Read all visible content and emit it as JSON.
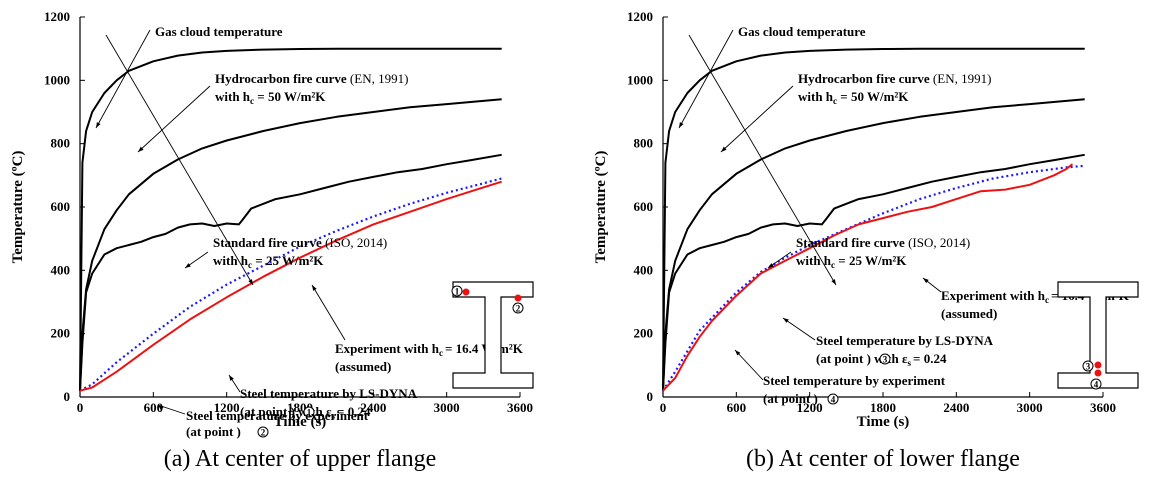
{
  "chart_data": [
    {
      "type": "line",
      "caption": "(a) At center of upper flange",
      "xlabel": "Time (s)",
      "ylabel": "Temperature (ºC)",
      "xlim": [
        0,
        3600
      ],
      "ylim": [
        0,
        1200
      ],
      "xticks": [
        0,
        600,
        1200,
        1800,
        2400,
        3000,
        3600
      ],
      "yticks": [
        0,
        200,
        400,
        600,
        800,
        1000,
        1200
      ],
      "grid": false,
      "series": [
        {
          "key": "gas",
          "color": "#000000",
          "style": "solid",
          "x": [
            0,
            20,
            50,
            100,
            200,
            300,
            400,
            600,
            800,
            1000,
            1200,
            1500,
            1800,
            2100,
            2400,
            2800,
            3200,
            3450
          ],
          "y": [
            20,
            740,
            840,
            900,
            960,
            1000,
            1030,
            1060,
            1078,
            1088,
            1093,
            1097,
            1099,
            1100,
            1100,
            1100,
            1100,
            1100
          ]
        },
        {
          "key": "hydrocarbon",
          "color": "#000000",
          "style": "solid",
          "x": [
            0,
            20,
            50,
            100,
            200,
            300,
            400,
            600,
            800,
            1000,
            1200,
            1500,
            1800,
            2100,
            2400,
            2700,
            3000,
            3300,
            3450
          ],
          "y": [
            20,
            200,
            340,
            430,
            530,
            590,
            640,
            705,
            750,
            785,
            810,
            840,
            865,
            885,
            900,
            915,
            925,
            935,
            940
          ]
        },
        {
          "key": "standard",
          "color": "#000000",
          "style": "solid",
          "x": [
            0,
            20,
            50,
            100,
            200,
            300,
            400,
            500,
            600,
            700,
            800,
            900,
            1000,
            1100,
            1200,
            1300,
            1330,
            1400,
            1500,
            1600,
            1800,
            2000,
            2200,
            2400,
            2600,
            2800,
            3000,
            3200,
            3450
          ],
          "y": [
            20,
            170,
            330,
            390,
            450,
            470,
            480,
            490,
            505,
            515,
            535,
            545,
            548,
            540,
            548,
            545,
            560,
            595,
            610,
            625,
            640,
            660,
            680,
            695,
            710,
            720,
            735,
            748,
            765
          ]
        },
        {
          "key": "lsdyna",
          "color": "#1a1aff",
          "style": "dotted",
          "x": [
            0,
            100,
            300,
            600,
            900,
            1200,
            1500,
            1800,
            2100,
            2400,
            2700,
            3000,
            3300,
            3450
          ],
          "y": [
            20,
            40,
            110,
            200,
            285,
            355,
            415,
            475,
            525,
            570,
            610,
            645,
            675,
            690
          ]
        },
        {
          "key": "experiment",
          "color": "#ee1111",
          "style": "solid",
          "x": [
            0,
            100,
            300,
            600,
            900,
            1200,
            1500,
            1800,
            2100,
            2400,
            2700,
            3000,
            3300,
            3450
          ],
          "y": [
            20,
            30,
            80,
            165,
            245,
            315,
            380,
            440,
            495,
            545,
            585,
            625,
            662,
            680
          ]
        }
      ],
      "labels": {
        "gas": "Gas cloud temperature",
        "hc_title": "Hydrocarbon fire curve",
        "hc_ref": "(EN, 1991)",
        "hc_with": "with h",
        "hc_sub": "c",
        "hc_val": " = 50 W/m²K",
        "std_title": "Standard fire curve",
        "std_ref": "(ISO, 2014)",
        "std_with": "with h",
        "std_sub": "c",
        "std_val": " = 25 W/m²K",
        "exp_l1a": "Experiment with h",
        "exp_sub": "c",
        "exp_l1b": "= 16.4 W/m²K",
        "exp_l2": "(assumed)",
        "ls_l1": "Steel temperature by LS-DYNA",
        "ls_l2a": "(at point ",
        "ls_pt": "1",
        "ls_l2b": ") with ε",
        "ls_sub": "s",
        "ls_l2c": "= 0.24",
        "se_l1": "Steel temperature by experiment",
        "se_l2a": "(at point ",
        "se_pt": "2",
        "se_l2b": ")"
      },
      "inset": {
        "p1": "1",
        "p2": "2"
      }
    },
    {
      "type": "line",
      "caption": "(b) At center of lower flange",
      "xlabel": "Time (s)",
      "ylabel": "Temperature (ºC)",
      "xlim": [
        0,
        3600
      ],
      "ylim": [
        0,
        1200
      ],
      "xticks": [
        0,
        600,
        1200,
        1800,
        2400,
        3000,
        3600
      ],
      "yticks": [
        0,
        200,
        400,
        600,
        800,
        1000,
        1200
      ],
      "grid": false,
      "series": [
        {
          "key": "gas",
          "color": "#000000",
          "style": "solid",
          "x": [
            0,
            20,
            50,
            100,
            200,
            300,
            400,
            600,
            800,
            1000,
            1200,
            1500,
            1800,
            2100,
            2400,
            2800,
            3200,
            3450
          ],
          "y": [
            20,
            740,
            840,
            900,
            960,
            1000,
            1030,
            1060,
            1078,
            1088,
            1093,
            1097,
            1099,
            1100,
            1100,
            1100,
            1100,
            1100
          ]
        },
        {
          "key": "hydrocarbon",
          "color": "#000000",
          "style": "solid",
          "x": [
            0,
            20,
            50,
            100,
            200,
            300,
            400,
            600,
            800,
            1000,
            1200,
            1500,
            1800,
            2100,
            2400,
            2700,
            3000,
            3300,
            3450
          ],
          "y": [
            20,
            200,
            340,
            430,
            530,
            590,
            640,
            705,
            750,
            785,
            810,
            840,
            865,
            885,
            900,
            915,
            925,
            935,
            940
          ]
        },
        {
          "key": "standard",
          "color": "#000000",
          "style": "solid",
          "x": [
            0,
            20,
            50,
            100,
            200,
            300,
            400,
            500,
            600,
            700,
            800,
            900,
            1000,
            1100,
            1200,
            1300,
            1330,
            1400,
            1500,
            1600,
            1800,
            2000,
            2200,
            2400,
            2600,
            2800,
            3000,
            3200,
            3450
          ],
          "y": [
            20,
            170,
            330,
            390,
            450,
            470,
            480,
            490,
            505,
            515,
            535,
            545,
            548,
            540,
            548,
            545,
            560,
            595,
            610,
            625,
            640,
            660,
            680,
            695,
            710,
            720,
            735,
            748,
            765
          ]
        },
        {
          "key": "lsdyna",
          "color": "#1a1aff",
          "style": "dotted",
          "x": [
            0,
            100,
            300,
            600,
            800,
            1000,
            1200,
            1500,
            1800,
            2100,
            2400,
            2700,
            3000,
            3300,
            3450
          ],
          "y": [
            20,
            80,
            210,
            330,
            395,
            440,
            480,
            530,
            580,
            625,
            660,
            690,
            710,
            725,
            730
          ]
        },
        {
          "key": "experiment",
          "color": "#ee1111",
          "style": "solid",
          "x": [
            0,
            100,
            200,
            300,
            400,
            500,
            600,
            700,
            800,
            1000,
            1200,
            1400,
            1600,
            1800,
            2000,
            2200,
            2400,
            2600,
            2800,
            3000,
            3200,
            3300,
            3350
          ],
          "y": [
            20,
            60,
            130,
            190,
            240,
            280,
            320,
            355,
            390,
            430,
            470,
            510,
            545,
            565,
            585,
            600,
            625,
            650,
            655,
            670,
            700,
            720,
            735
          ]
        }
      ],
      "labels": {
        "gas": "Gas cloud temperature",
        "hc_title": "Hydrocarbon fire curve",
        "hc_ref": "(EN, 1991)",
        "hc_with": "with h",
        "hc_sub": "c",
        "hc_val": " = 50 W/m²K",
        "std_title": "Standard fire curve",
        "std_ref": "(ISO, 2014)",
        "std_with": "with h",
        "std_sub": "c",
        "std_val": " = 25 W/m²K",
        "exp_l1a": "Experiment with h",
        "exp_sub": "c",
        "exp_l1b": "= 16.4 W/m²K",
        "exp_l2": "(assumed)",
        "ls_l1": "Steel temperature by LS-DYNA",
        "ls_l2a": "(at point ",
        "ls_pt": "3",
        "ls_l2b": ") with ε",
        "ls_sub": "s",
        "ls_l2c": "= 0.24",
        "se_l1": "Steel temperature by experiment",
        "se_l2a": "(at point",
        "se_pt": "4",
        "se_l2b": ")"
      },
      "inset": {
        "p3": "3",
        "p4": "4"
      }
    }
  ]
}
